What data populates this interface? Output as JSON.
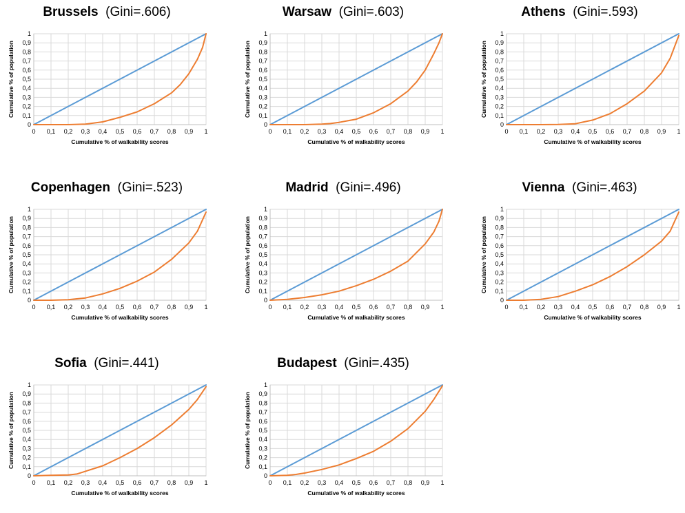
{
  "chart_data": [
    {
      "type": "line",
      "city": "Brussels",
      "gini_label": "(Gini=.606)",
      "xlabel": "Cumulative % of walkability scores",
      "ylabel": "Cumulative % of population",
      "xlim": [
        0,
        1
      ],
      "ylim": [
        0,
        1
      ],
      "x_ticks": [
        "0",
        "0,1",
        "0,2",
        "0,3",
        "0,4",
        "0,5",
        "0,6",
        "0,7",
        "0,8",
        "0,9",
        "1"
      ],
      "y_ticks": [
        "0",
        "0,1",
        "0,2",
        "0,3",
        "0,4",
        "0,5",
        "0,6",
        "0,7",
        "0,8",
        "0,9",
        "1"
      ],
      "grid": true,
      "series": [
        {
          "color": "#5b9bd5",
          "x": [
            0,
            1
          ],
          "y": [
            0,
            1
          ]
        },
        {
          "color": "#ed7d31",
          "x": [
            0,
            0.1,
            0.2,
            0.3,
            0.4,
            0.5,
            0.6,
            0.7,
            0.8,
            0.85,
            0.9,
            0.95,
            0.98,
            1
          ],
          "y": [
            0,
            0,
            0,
            0.005,
            0.03,
            0.08,
            0.14,
            0.23,
            0.35,
            0.44,
            0.56,
            0.72,
            0.85,
            1
          ]
        }
      ]
    },
    {
      "type": "line",
      "city": "Warsaw",
      "gini_label": "(Gini=.603)",
      "xlabel": "Cumulative % of walkability scores",
      "ylabel": "Cumulative % of population",
      "xlim": [
        0,
        1
      ],
      "ylim": [
        0,
        1
      ],
      "x_ticks": [
        "0",
        "0,1",
        "0,2",
        "0,3",
        "0,4",
        "0,5",
        "0,6",
        "0,7",
        "0,8",
        "0,9",
        "1"
      ],
      "y_ticks": [
        "0",
        "0,1",
        "0,2",
        "0,3",
        "0,4",
        "0,5",
        "0,6",
        "0,7",
        "0,8",
        "0,9",
        "1"
      ],
      "grid": true,
      "series": [
        {
          "color": "#5b9bd5",
          "x": [
            0,
            1
          ],
          "y": [
            0,
            1
          ]
        },
        {
          "color": "#ed7d31",
          "x": [
            0,
            0.1,
            0.2,
            0.3,
            0.35,
            0.4,
            0.5,
            0.6,
            0.7,
            0.8,
            0.85,
            0.9,
            0.95,
            0.98,
            1
          ],
          "y": [
            0,
            0,
            0,
            0.005,
            0.012,
            0.025,
            0.06,
            0.13,
            0.23,
            0.37,
            0.47,
            0.6,
            0.78,
            0.9,
            1
          ]
        }
      ]
    },
    {
      "type": "line",
      "city": "Athens",
      "gini_label": "(Gini=.593)",
      "xlabel": "Cumulative % of walkability scores",
      "ylabel": "Cumulative % of population",
      "xlim": [
        0,
        1
      ],
      "ylim": [
        0,
        1
      ],
      "x_ticks": [
        "0",
        "0,1",
        "0,2",
        "0,3",
        "0,4",
        "0,5",
        "0,6",
        "0,7",
        "0,8",
        "0,9",
        "1"
      ],
      "y_ticks": [
        "0",
        "0,1",
        "0,2",
        "0,3",
        "0,4",
        "0,5",
        "0,6",
        "0,7",
        "0,8",
        "0,9",
        "1"
      ],
      "grid": true,
      "series": [
        {
          "color": "#5b9bd5",
          "x": [
            0,
            1
          ],
          "y": [
            0,
            1
          ]
        },
        {
          "color": "#ed7d31",
          "x": [
            0,
            0.1,
            0.2,
            0.3,
            0.4,
            0.45,
            0.5,
            0.6,
            0.7,
            0.8,
            0.9,
            0.95,
            1
          ],
          "y": [
            0,
            0,
            0,
            0.002,
            0.01,
            0.03,
            0.05,
            0.12,
            0.23,
            0.37,
            0.57,
            0.73,
            0.98
          ]
        }
      ]
    },
    {
      "type": "line",
      "city": "Copenhagen",
      "gini_label": "(Gini=.523)",
      "xlabel": "Cumulative % of walkability scores",
      "ylabel": "Cumulative % of population",
      "xlim": [
        0,
        1
      ],
      "ylim": [
        0,
        1
      ],
      "x_ticks": [
        "0",
        "0,1",
        "0,2",
        "0,3",
        "0,4",
        "0,5",
        "0,6",
        "0,7",
        "0,8",
        "0,9",
        "1"
      ],
      "y_ticks": [
        "0",
        "0,1",
        "0,2",
        "0,3",
        "0,4",
        "0,5",
        "0,6",
        "0,7",
        "0,8",
        "0,9",
        "1"
      ],
      "grid": true,
      "series": [
        {
          "color": "#5b9bd5",
          "x": [
            0,
            1
          ],
          "y": [
            0,
            1
          ]
        },
        {
          "color": "#ed7d31",
          "x": [
            0,
            0.1,
            0.2,
            0.3,
            0.4,
            0.5,
            0.6,
            0.7,
            0.8,
            0.9,
            0.95,
            1
          ],
          "y": [
            0,
            0,
            0.005,
            0.025,
            0.07,
            0.13,
            0.21,
            0.31,
            0.45,
            0.63,
            0.76,
            0.97
          ]
        }
      ]
    },
    {
      "type": "line",
      "city": "Madrid",
      "gini_label": "(Gini=.496)",
      "xlabel": "Cumulative % of walkability scores",
      "ylabel": "Cumulative % of population",
      "xlim": [
        0,
        1
      ],
      "ylim": [
        0,
        1
      ],
      "x_ticks": [
        "0",
        "0,1",
        "0,2",
        "0,3",
        "0,4",
        "0,5",
        "0,6",
        "0,7",
        "0,8",
        "0,9",
        "1"
      ],
      "y_ticks": [
        "0",
        "0,1",
        "0,2",
        "0,3",
        "0,4",
        "0,5",
        "0,6",
        "0,7",
        "0,8",
        "0,9",
        "1"
      ],
      "grid": true,
      "series": [
        {
          "color": "#5b9bd5",
          "x": [
            0,
            1
          ],
          "y": [
            0,
            1
          ]
        },
        {
          "color": "#ed7d31",
          "x": [
            0,
            0.1,
            0.2,
            0.3,
            0.4,
            0.5,
            0.6,
            0.7,
            0.8,
            0.9,
            0.95,
            0.98,
            1
          ],
          "y": [
            0,
            0.01,
            0.03,
            0.06,
            0.1,
            0.16,
            0.23,
            0.32,
            0.43,
            0.62,
            0.75,
            0.87,
            1
          ]
        }
      ]
    },
    {
      "type": "line",
      "city": "Vienna",
      "gini_label": "(Gini=.463)",
      "xlabel": "Cumulative % of walkability scores",
      "ylabel": "Cumulative % of population",
      "xlim": [
        0,
        1
      ],
      "ylim": [
        0,
        1
      ],
      "x_ticks": [
        "0",
        "0,1",
        "0,2",
        "0,3",
        "0,4",
        "0,5",
        "0,6",
        "0,7",
        "0,8",
        "0,9",
        "1"
      ],
      "y_ticks": [
        "0",
        "0,1",
        "0,2",
        "0,3",
        "0,4",
        "0,5",
        "0,6",
        "0,7",
        "0,8",
        "0,9",
        "1"
      ],
      "grid": true,
      "series": [
        {
          "color": "#5b9bd5",
          "x": [
            0,
            1
          ],
          "y": [
            0,
            1
          ]
        },
        {
          "color": "#ed7d31",
          "x": [
            0,
            0.1,
            0.2,
            0.3,
            0.4,
            0.5,
            0.6,
            0.7,
            0.8,
            0.9,
            0.95,
            1
          ],
          "y": [
            0,
            0,
            0.01,
            0.04,
            0.1,
            0.17,
            0.26,
            0.37,
            0.5,
            0.65,
            0.76,
            0.97
          ]
        }
      ]
    },
    {
      "type": "line",
      "city": "Sofia",
      "gini_label": "(Gini=.441)",
      "xlabel": "Cumulative % of walkability scores",
      "ylabel": "Cumulative % of population",
      "xlim": [
        0,
        1
      ],
      "ylim": [
        0,
        1
      ],
      "x_ticks": [
        "0",
        "0,1",
        "0,2",
        "0,3",
        "0,4",
        "0,5",
        "0,6",
        "0,7",
        "0,8",
        "0,9",
        "1"
      ],
      "y_ticks": [
        "0",
        "0,1",
        "0,2",
        "0,3",
        "0,4",
        "0,5",
        "0,6",
        "0,7",
        "0,8",
        "0,9",
        "1"
      ],
      "grid": true,
      "series": [
        {
          "color": "#5b9bd5",
          "x": [
            0,
            1
          ],
          "y": [
            0,
            1
          ]
        },
        {
          "color": "#ed7d31",
          "x": [
            0,
            0.1,
            0.2,
            0.25,
            0.3,
            0.4,
            0.5,
            0.6,
            0.7,
            0.8,
            0.9,
            0.95,
            1
          ],
          "y": [
            0,
            0.005,
            0.01,
            0.02,
            0.05,
            0.11,
            0.2,
            0.3,
            0.42,
            0.56,
            0.73,
            0.84,
            0.98
          ]
        }
      ]
    },
    {
      "type": "line",
      "city": "Budapest",
      "gini_label": "(Gini=.435)",
      "xlabel": "Cumulative % of walkability scores",
      "ylabel": "Cumulative % of population",
      "xlim": [
        0,
        1
      ],
      "ylim": [
        0,
        1
      ],
      "x_ticks": [
        "0",
        "0,1",
        "0,2",
        "0,3",
        "0,4",
        "0,5",
        "0,6",
        "0,7",
        "0,8",
        "0,9",
        "1"
      ],
      "y_ticks": [
        "0",
        "0,1",
        "0,2",
        "0,3",
        "0,4",
        "0,5",
        "0,6",
        "0,7",
        "0,8",
        "0,9",
        "1"
      ],
      "grid": true,
      "series": [
        {
          "color": "#5b9bd5",
          "x": [
            0,
            1
          ],
          "y": [
            0,
            1
          ]
        },
        {
          "color": "#ed7d31",
          "x": [
            0,
            0.1,
            0.15,
            0.2,
            0.3,
            0.4,
            0.5,
            0.6,
            0.7,
            0.8,
            0.9,
            0.95,
            1
          ],
          "y": [
            0,
            0.005,
            0.015,
            0.03,
            0.07,
            0.12,
            0.19,
            0.27,
            0.38,
            0.52,
            0.71,
            0.84,
            0.99
          ]
        }
      ]
    }
  ]
}
